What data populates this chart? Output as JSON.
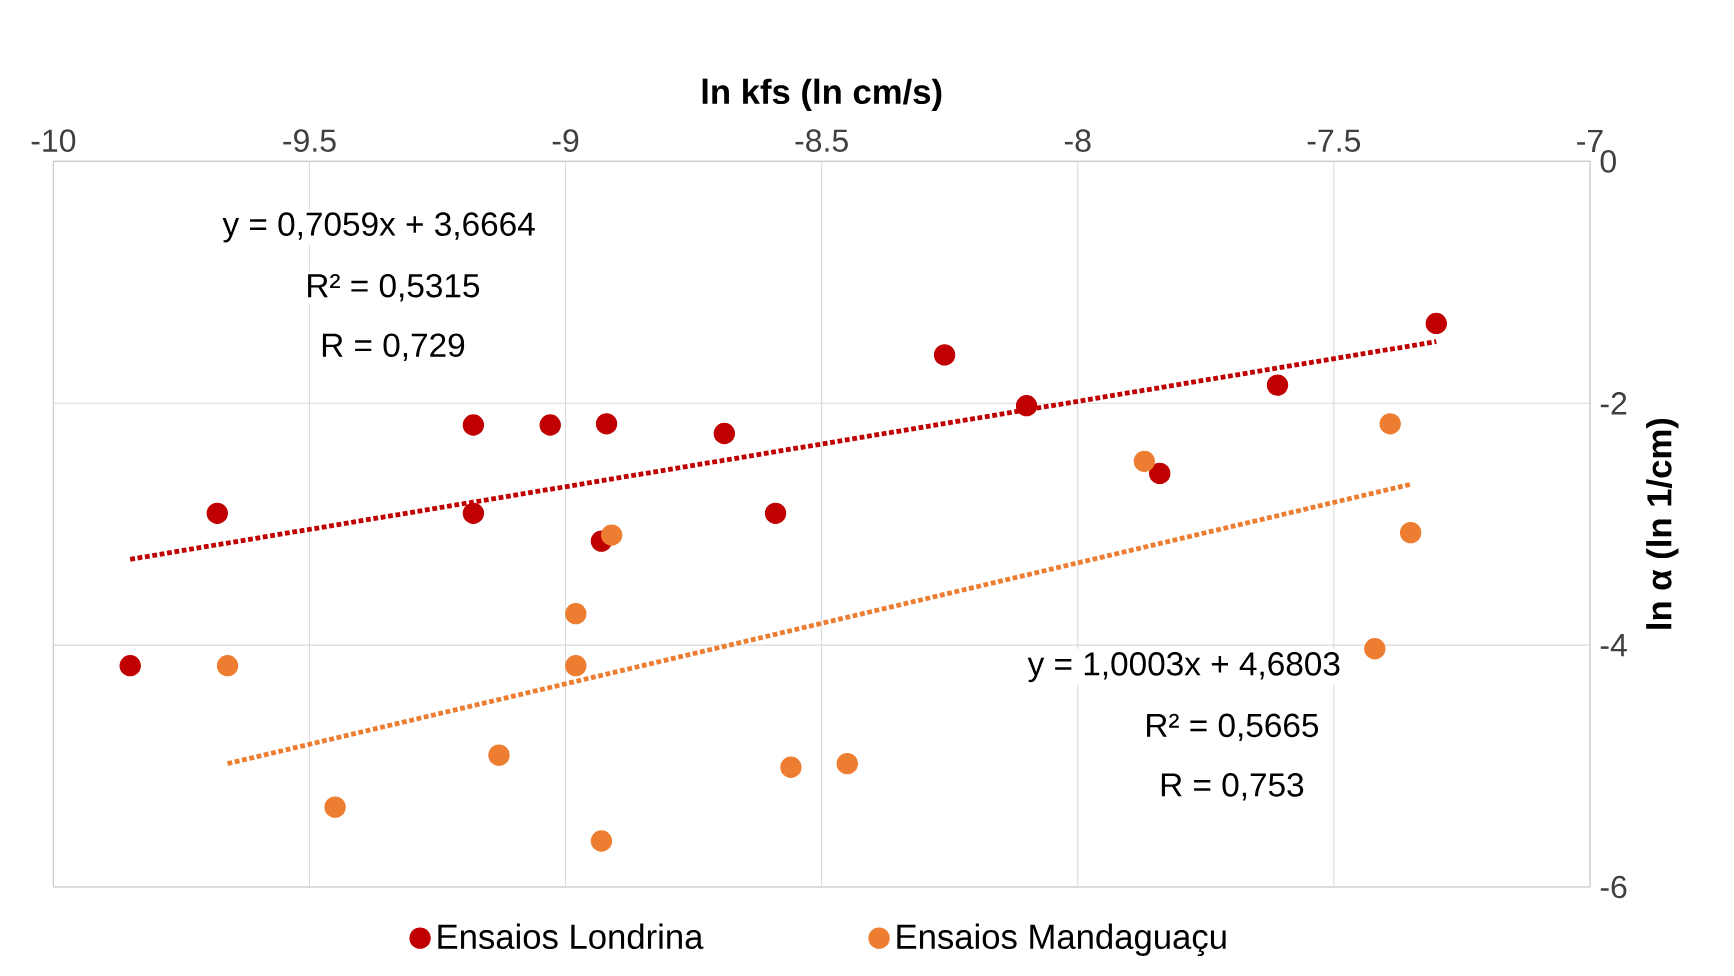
{
  "chart_data": {
    "type": "scatter",
    "xlabel": "ln kfs (ln cm/s)",
    "ylabel": "ln α (ln 1/cm)",
    "xlim": [
      -10,
      -7
    ],
    "ylim": [
      -6,
      0
    ],
    "xticks": [
      -10,
      -9.5,
      -9,
      -8.5,
      -8,
      -7.5,
      -7
    ],
    "yticks": [
      -6,
      -4,
      -2,
      0
    ],
    "grid": true,
    "legend": "bottom",
    "marker": "circle",
    "annotations": [
      "y = 0,7059x + 3,6664",
      "R² = 0,5315",
      "R = 0,729",
      "y = 1,0003x + 4,6803",
      "R² = 0,5665",
      "R = 0,753"
    ],
    "series": [
      {
        "name": "Ensaios Londrina",
        "color": "#c00000",
        "x": [
          -9.85,
          -9.68,
          -9.18,
          -9.18,
          -9.03,
          -8.93,
          -8.92,
          -8.69,
          -8.59,
          -8.26,
          -8.1,
          -7.84,
          -7.61,
          -7.3
        ],
        "values": [
          -4.17,
          -2.91,
          -2.18,
          -2.91,
          -2.18,
          -3.14,
          -2.17,
          -2.25,
          -2.91,
          -1.6,
          -2.02,
          -2.58,
          -1.85,
          -1.34
        ]
      },
      {
        "name": "Ensaios Mandaguaçu",
        "color": "#ed7d31",
        "x": [
          -9.66,
          -9.45,
          -9.13,
          -8.98,
          -8.98,
          -8.93,
          -8.91,
          -8.56,
          -8.45,
          -7.87,
          -7.42,
          -7.39,
          -7.35
        ],
        "values": [
          -4.17,
          -5.34,
          -4.91,
          -3.74,
          -4.17,
          -5.62,
          -3.09,
          -5.01,
          -4.98,
          -2.48,
          -4.03,
          -2.17,
          -3.07
        ]
      },
      {
        "type": "line",
        "color": "#c00000",
        "line_style": "dotted",
        "marker": "none",
        "x": [
          -9.85,
          -7.3
        ],
        "values": [
          -3.29,
          -1.49
        ]
      },
      {
        "type": "line",
        "color": "#ed7d31",
        "line_style": "dotted",
        "marker": "none",
        "x": [
          -9.66,
          -7.35
        ],
        "values": [
          -4.98,
          -2.67
        ]
      }
    ]
  }
}
